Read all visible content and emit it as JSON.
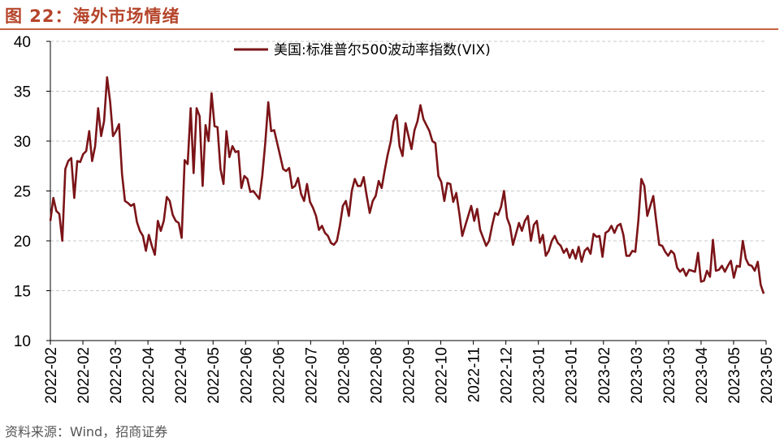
{
  "figure": {
    "title": "图 22：海外市场情绪",
    "source": "资料来源：Wind，招商证券"
  },
  "colors": {
    "title": "#b5452b",
    "rule": "#c8613f",
    "series": "#7b1418"
  },
  "chart_data": {
    "type": "line",
    "title": "",
    "xlabel": "",
    "ylabel": "",
    "ylim": [
      10,
      40
    ],
    "yticks": [
      10,
      15,
      20,
      25,
      30,
      35,
      40
    ],
    "grid": "horizontal-dashed",
    "legend_position": "top-center",
    "x_tick_labels": [
      "2022-02",
      "2022-02",
      "2022-03",
      "2022-04",
      "2022-04",
      "2022-05",
      "2022-06",
      "2022-06",
      "2022-07",
      "2022-08",
      "2022-08",
      "2022-09",
      "2022-10",
      "2022-11",
      "2022-12",
      "2023-01",
      "2023-01",
      "2023-02",
      "2023-03",
      "2023-03",
      "2023-04",
      "2023-05",
      "2023-05"
    ],
    "series": [
      {
        "name": "美国:标准普尔500波动率指数(VIX)",
        "values": [
          22.0,
          24.3,
          23.0,
          22.7,
          20.0,
          27.2,
          28.0,
          28.3,
          24.3,
          28.0,
          27.9,
          28.7,
          29.0,
          31.0,
          28.0,
          29.5,
          33.3,
          30.5,
          32.0,
          36.4,
          34.0,
          30.5,
          31.0,
          31.7,
          26.7,
          24.0,
          23.8,
          23.5,
          23.7,
          21.9,
          21.0,
          20.5,
          19.0,
          20.6,
          19.5,
          18.6,
          22.0,
          21.0,
          22.0,
          24.4,
          24.0,
          22.6,
          22.0,
          21.8,
          20.3,
          28.1,
          27.7,
          33.3,
          26.8,
          33.3,
          32.5,
          25.5,
          31.6,
          30.0,
          34.8,
          31.5,
          31.4,
          27.2,
          25.7,
          31.0,
          28.4,
          29.5,
          28.9,
          29.0,
          25.3,
          26.5,
          26.2,
          24.9,
          25.0,
          24.6,
          24.2,
          26.5,
          29.8,
          33.9,
          31.0,
          31.1,
          29.8,
          28.5,
          27.2,
          27.0,
          27.3,
          25.3,
          25.5,
          26.3,
          24.7,
          24.0,
          25.7,
          23.9,
          23.3,
          22.5,
          21.1,
          21.5,
          20.8,
          20.5,
          19.8,
          19.6,
          20.0,
          21.5,
          23.5,
          24.0,
          22.5,
          25.0,
          26.2,
          25.5,
          25.5,
          26.4,
          24.5,
          22.8,
          24.0,
          24.5,
          26.0,
          25.3,
          27.0,
          28.6,
          29.9,
          32.0,
          32.6,
          29.5,
          28.5,
          31.8,
          30.5,
          29.2,
          31.1,
          32.0,
          33.6,
          32.2,
          31.6,
          31.0,
          30.0,
          29.8,
          26.5,
          25.9,
          24.0,
          25.8,
          25.7,
          23.9,
          24.8,
          22.8,
          20.5,
          21.5,
          22.5,
          23.5,
          22.0,
          23.2,
          21.1,
          20.3,
          19.5,
          20.0,
          21.5,
          22.8,
          22.6,
          23.4,
          25.0,
          22.3,
          21.5,
          19.6,
          20.7,
          21.8,
          21.0,
          22.0,
          22.5,
          20.0,
          21.6,
          22.0,
          19.8,
          20.6,
          18.5,
          19.0,
          20.0,
          20.5,
          19.8,
          19.5,
          18.8,
          19.2,
          18.3,
          19.1,
          18.2,
          19.4,
          17.9,
          19.0,
          19.3,
          18.7,
          20.7,
          20.4,
          20.5,
          18.4,
          20.8,
          21.0,
          21.5,
          20.8,
          21.5,
          21.7,
          20.6,
          18.5,
          18.5,
          19.0,
          18.9,
          22.0,
          26.2,
          25.5,
          22.5,
          23.5,
          24.5,
          22.0,
          19.6,
          19.5,
          18.9,
          18.5,
          19.0,
          18.7,
          17.3,
          16.9,
          17.2,
          16.5,
          17.1,
          17.0,
          16.9,
          18.8,
          15.9,
          16.0,
          17.0,
          16.4,
          20.1,
          17.0,
          17.1,
          17.5,
          16.9,
          17.5,
          18.0,
          16.3,
          17.5,
          17.4,
          20.0,
          18.2,
          17.6,
          17.5,
          17.0,
          17.9,
          15.6,
          14.7
        ]
      }
    ]
  }
}
